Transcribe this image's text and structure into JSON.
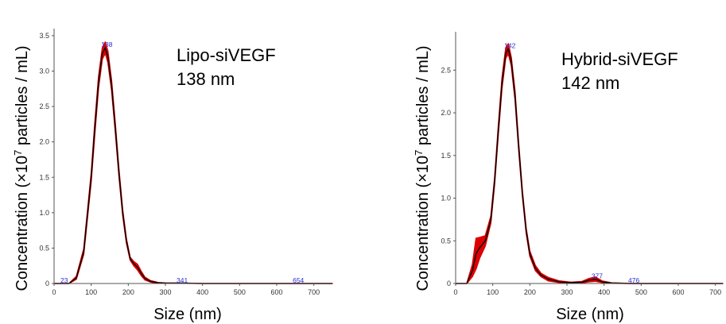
{
  "chart_data": [
    {
      "type": "line",
      "sample_label": "Lipo-siVEGF",
      "size_label": "138 nm",
      "xlabel": "Size (nm)",
      "ylabel_pre": "Concentration (×10",
      "ylabel_sup": "7",
      "ylabel_post": " particles / mL)",
      "xlim": [
        0,
        750
      ],
      "ylim": [
        0,
        3.6
      ],
      "xticks": [
        "0",
        "100",
        "200",
        "300",
        "400",
        "500",
        "600",
        "700"
      ],
      "yticks": [
        "0",
        "0.5",
        "1.0",
        "1.5",
        "2.0",
        "2.5",
        "3.0",
        "3.5"
      ],
      "colors": {
        "mean_line": "#000000",
        "error_band": "#dd0000",
        "peak_labels": "#2a2ad6"
      },
      "peak_labels": [
        {
          "text": "23",
          "x": 23,
          "y": 0.0
        },
        {
          "text": "138",
          "x": 138,
          "y": 3.33
        },
        {
          "text": "341",
          "x": 341,
          "y": 0.0
        },
        {
          "text": "654",
          "x": 654,
          "y": 0.0
        }
      ],
      "series": [
        {
          "x": [
            0,
            40,
            60,
            80,
            100,
            110,
            120,
            130,
            138,
            145,
            155,
            165,
            175,
            185,
            195,
            205,
            215,
            225,
            235,
            245,
            260,
            280,
            300,
            350,
            400,
            500,
            600,
            700,
            750
          ],
          "y": [
            0,
            0.0,
            0.08,
            0.45,
            1.5,
            2.2,
            2.85,
            3.25,
            3.33,
            3.2,
            2.8,
            2.2,
            1.55,
            1.0,
            0.6,
            0.35,
            0.28,
            0.23,
            0.14,
            0.07,
            0.03,
            0.01,
            0.005,
            0.004,
            0.0,
            0.0,
            0.0,
            0.0,
            0.0
          ],
          "err": [
            0,
            0.0,
            0.02,
            0.04,
            0.06,
            0.08,
            0.08,
            0.08,
            0.08,
            0.08,
            0.07,
            0.06,
            0.05,
            0.04,
            0.03,
            0.02,
            0.03,
            0.04,
            0.03,
            0.02,
            0.01,
            0.005,
            0.003,
            0.002,
            0.0,
            0.0,
            0.0,
            0.0,
            0.0
          ]
        }
      ]
    },
    {
      "type": "line",
      "sample_label": "Hybrid-siVEGF",
      "size_label": "142 nm",
      "xlabel": "Size (nm)",
      "ylabel_pre": "Concentration (×10",
      "ylabel_sup": "7",
      "ylabel_post": " particles / mL)",
      "xlim": [
        0,
        720
      ],
      "ylim": [
        0,
        2.95
      ],
      "xticks": [
        "0",
        "100",
        "200",
        "300",
        "400",
        "500",
        "600",
        "700"
      ],
      "yticks": [
        "0",
        "0.5",
        "1.0",
        "1.5",
        "2.0",
        "2.5"
      ],
      "colors": {
        "mean_line": "#000000",
        "error_band": "#dd0000",
        "peak_labels": "#2a2ad6"
      },
      "peak_labels": [
        {
          "text": "142",
          "x": 142,
          "y": 2.75
        },
        {
          "text": "377",
          "x": 377,
          "y": 0.05
        },
        {
          "text": "476",
          "x": 476,
          "y": 0.0
        }
      ],
      "series": [
        {
          "x": [
            0,
            30,
            45,
            55,
            65,
            80,
            95,
            105,
            115,
            125,
            135,
            142,
            150,
            160,
            170,
            180,
            190,
            200,
            215,
            230,
            250,
            280,
            310,
            340,
            360,
            377,
            395,
            420,
            476,
            550,
            650,
            720
          ],
          "y": [
            0,
            0.0,
            0.15,
            0.35,
            0.42,
            0.5,
            0.75,
            1.2,
            1.8,
            2.35,
            2.7,
            2.75,
            2.6,
            2.2,
            1.6,
            1.05,
            0.62,
            0.35,
            0.18,
            0.1,
            0.05,
            0.02,
            0.01,
            0.015,
            0.04,
            0.05,
            0.02,
            0.005,
            0.0,
            0.0,
            0.0,
            0.0
          ],
          "err": [
            0,
            0.0,
            0.07,
            0.18,
            0.12,
            0.06,
            0.04,
            0.04,
            0.05,
            0.06,
            0.06,
            0.06,
            0.05,
            0.05,
            0.04,
            0.03,
            0.03,
            0.03,
            0.03,
            0.02,
            0.02,
            0.01,
            0.005,
            0.008,
            0.02,
            0.025,
            0.01,
            0.003,
            0.0,
            0.0,
            0.0,
            0.0
          ]
        }
      ]
    }
  ]
}
